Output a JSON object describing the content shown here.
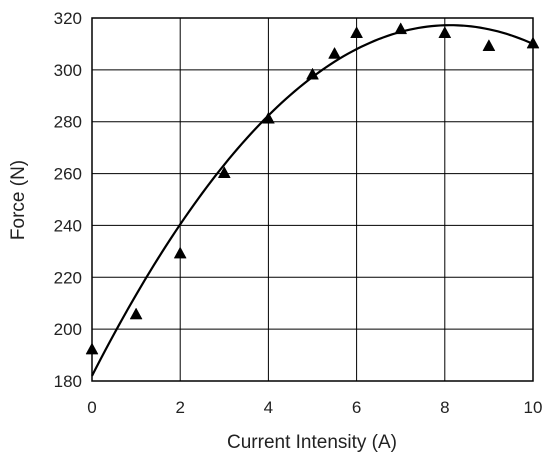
{
  "chart_data": {
    "type": "scatter",
    "xlabel": "Current Intensity (A)",
    "ylabel": "Force (N)",
    "xlim": [
      0,
      10
    ],
    "ylim": [
      180,
      320
    ],
    "xticks": [
      "0",
      "2",
      "4",
      "6",
      "8",
      "10"
    ],
    "yticks": [
      "180",
      "200",
      "220",
      "240",
      "260",
      "280",
      "300",
      "320"
    ],
    "grid": true,
    "legend": "none",
    "series": [
      {
        "marker": "triangle",
        "color": "#000000",
        "x": [
          0,
          1,
          2,
          3,
          4,
          5,
          5.5,
          6,
          7,
          8,
          9,
          10
        ],
        "y": [
          192,
          205.5,
          229,
          260,
          281,
          298,
          306,
          314,
          315.5,
          314,
          309,
          310
        ]
      }
    ],
    "trendline": {
      "type": "polynomial-2",
      "color": "#000000",
      "coefficients": [
        182,
        33.3,
        -2.05
      ]
    }
  }
}
